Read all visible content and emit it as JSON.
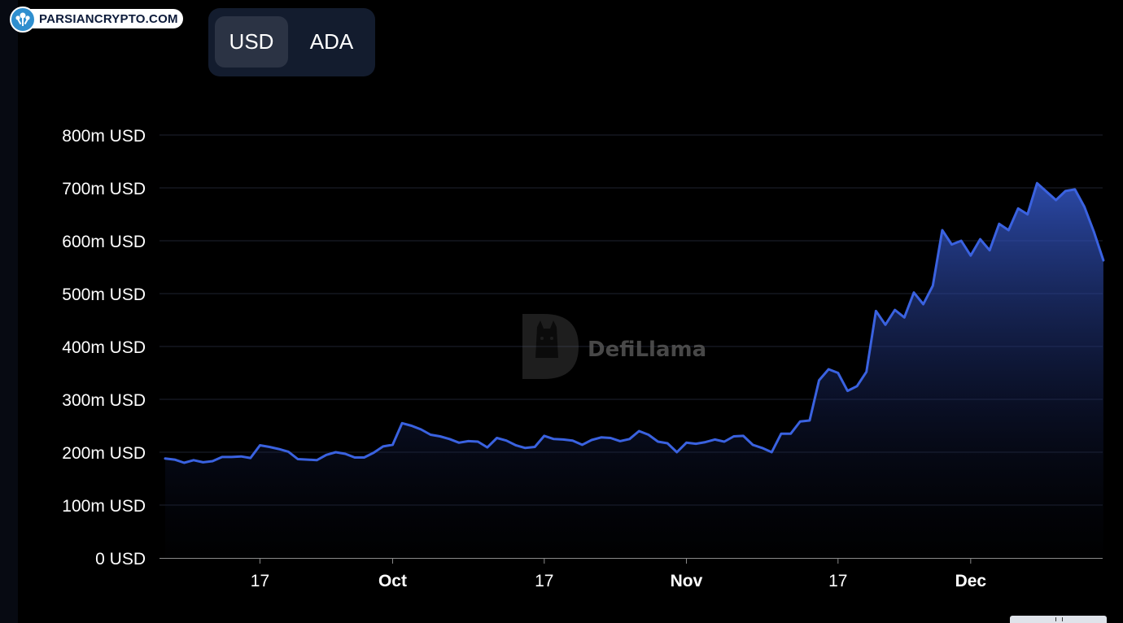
{
  "brand": {
    "name": "PARSIANCRYPTO.COM",
    "logo_icon": "parsiancrypto-logo-icon"
  },
  "toggle": {
    "options": [
      "USD",
      "ADA"
    ],
    "selected": "USD"
  },
  "watermark": {
    "text": "DefiLlama",
    "icon": "defillama-logo-icon"
  },
  "colors": {
    "line": "#3a62e0",
    "grid": "#1e2230",
    "background": "#000000",
    "toggle_bg": "#131c2e",
    "toggle_active": "#2b3344"
  },
  "chart_data": {
    "type": "area",
    "title": "",
    "xlabel": "",
    "ylabel": "",
    "ylim": [
      0,
      800
    ],
    "y_unit": "m USD",
    "yticks": [
      {
        "value": 0,
        "label": "0 USD"
      },
      {
        "value": 100,
        "label": "100m USD"
      },
      {
        "value": 200,
        "label": "200m USD"
      },
      {
        "value": 300,
        "label": "300m USD"
      },
      {
        "value": 400,
        "label": "400m USD"
      },
      {
        "value": 500,
        "label": "500m USD"
      },
      {
        "value": 600,
        "label": "600m USD"
      },
      {
        "value": 700,
        "label": "700m USD"
      },
      {
        "value": 800,
        "label": "800m USD"
      }
    ],
    "xlim": [
      "Sep 7",
      "Dec 10"
    ],
    "xticks": [
      {
        "date": "Sep 17",
        "label": "17",
        "bold": false
      },
      {
        "date": "Oct 1",
        "label": "Oct",
        "bold": true
      },
      {
        "date": "Oct 17",
        "label": "17",
        "bold": false
      },
      {
        "date": "Nov 1",
        "label": "Nov",
        "bold": true
      },
      {
        "date": "Nov 17",
        "label": "17",
        "bold": false
      },
      {
        "date": "Dec 1",
        "label": "Dec",
        "bold": true
      }
    ],
    "grid": true,
    "series": [
      {
        "values": [
          [
            "Sep 7",
            188
          ],
          [
            "Sep 8",
            186
          ],
          [
            "Sep 9",
            180
          ],
          [
            "Sep 10",
            185
          ],
          [
            "Sep 11",
            181
          ],
          [
            "Sep 12",
            183
          ],
          [
            "Sep 13",
            191
          ],
          [
            "Sep 14",
            191
          ],
          [
            "Sep 15",
            192
          ],
          [
            "Sep 16",
            189
          ],
          [
            "Sep 17",
            213
          ],
          [
            "Sep 18",
            210
          ],
          [
            "Sep 19",
            206
          ],
          [
            "Sep 20",
            201
          ],
          [
            "Sep 21",
            187
          ],
          [
            "Sep 22",
            186
          ],
          [
            "Sep 23",
            185
          ],
          [
            "Sep 24",
            195
          ],
          [
            "Sep 25",
            200
          ],
          [
            "Sep 26",
            197
          ],
          [
            "Sep 27",
            190
          ],
          [
            "Sep 28",
            190
          ],
          [
            "Sep 29",
            199
          ],
          [
            "Sep 30",
            211
          ],
          [
            "Oct 1",
            214
          ],
          [
            "Oct 2",
            255
          ],
          [
            "Oct 3",
            250
          ],
          [
            "Oct 4",
            243
          ],
          [
            "Oct 5",
            233
          ],
          [
            "Oct 6",
            230
          ],
          [
            "Oct 7",
            225
          ],
          [
            "Oct 8",
            218
          ],
          [
            "Oct 9",
            221
          ],
          [
            "Oct 10",
            220
          ],
          [
            "Oct 11",
            209
          ],
          [
            "Oct 12",
            227
          ],
          [
            "Oct 13",
            222
          ],
          [
            "Oct 14",
            213
          ],
          [
            "Oct 15",
            208
          ],
          [
            "Oct 16",
            210
          ],
          [
            "Oct 17",
            231
          ],
          [
            "Oct 18",
            225
          ],
          [
            "Oct 19",
            224
          ],
          [
            "Oct 20",
            222
          ],
          [
            "Oct 21",
            214
          ],
          [
            "Oct 22",
            223
          ],
          [
            "Oct 23",
            228
          ],
          [
            "Oct 24",
            227
          ],
          [
            "Oct 25",
            221
          ],
          [
            "Oct 26",
            225
          ],
          [
            "Oct 27",
            240
          ],
          [
            "Oct 28",
            233
          ],
          [
            "Oct 29",
            220
          ],
          [
            "Oct 30",
            217
          ],
          [
            "Oct 31",
            200
          ],
          [
            "Nov 1",
            218
          ],
          [
            "Nov 2",
            216
          ],
          [
            "Nov 3",
            219
          ],
          [
            "Nov 4",
            224
          ],
          [
            "Nov 5",
            220
          ],
          [
            "Nov 6",
            230
          ],
          [
            "Nov 7",
            231
          ],
          [
            "Nov 8",
            214
          ],
          [
            "Nov 9",
            208
          ],
          [
            "Nov 10",
            200
          ],
          [
            "Nov 11",
            235
          ],
          [
            "Nov 12",
            235
          ],
          [
            "Nov 13",
            258
          ],
          [
            "Nov 14",
            260
          ],
          [
            "Nov 15",
            336
          ],
          [
            "Nov 16",
            357
          ],
          [
            "Nov 17",
            350
          ],
          [
            "Nov 18",
            316
          ],
          [
            "Nov 19",
            325
          ],
          [
            "Nov 20",
            352
          ],
          [
            "Nov 21",
            467
          ],
          [
            "Nov 22",
            441
          ],
          [
            "Nov 23",
            469
          ],
          [
            "Nov 24",
            455
          ],
          [
            "Nov 25",
            502
          ],
          [
            "Nov 26",
            480
          ],
          [
            "Nov 27",
            515
          ],
          [
            "Nov 28",
            620
          ],
          [
            "Nov 29",
            593
          ],
          [
            "Nov 30",
            600
          ],
          [
            "Dec 1",
            572
          ],
          [
            "Dec 2",
            603
          ],
          [
            "Dec 3",
            582
          ],
          [
            "Dec 4",
            632
          ],
          [
            "Dec 5",
            620
          ],
          [
            "Dec 6",
            661
          ],
          [
            "Dec 7",
            650
          ],
          [
            "Dec 8",
            709
          ],
          [
            "Dec 9",
            693
          ],
          [
            "Dec 10",
            677
          ],
          [
            "Dec 11",
            694
          ],
          [
            "Dec 12",
            697
          ],
          [
            "Dec 13",
            664
          ],
          [
            "Dec 14",
            617
          ],
          [
            "Dec 15",
            563
          ]
        ]
      }
    ]
  }
}
